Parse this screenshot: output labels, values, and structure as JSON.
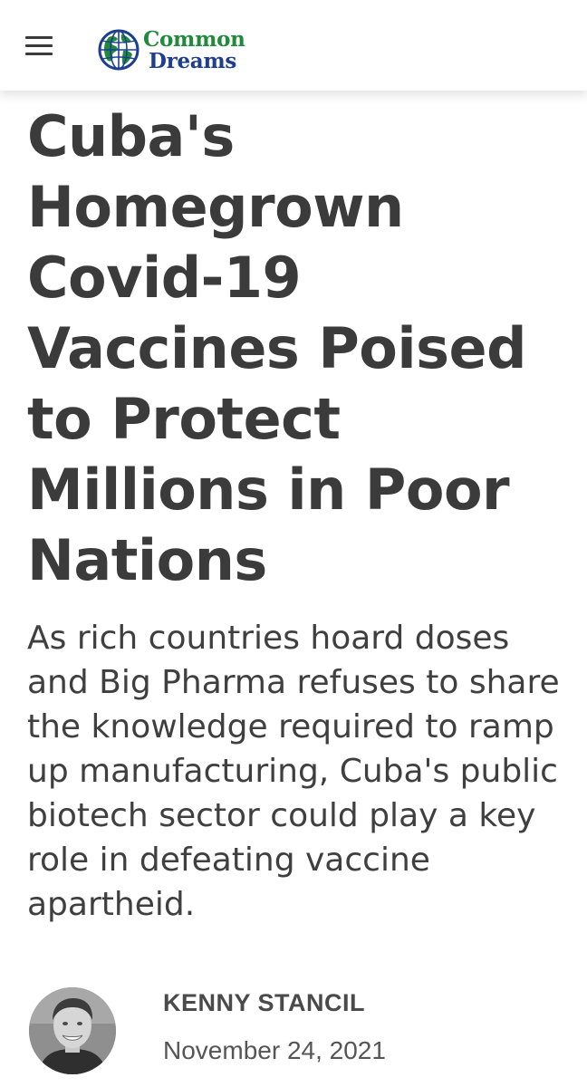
{
  "header": {
    "menu_icon": "hamburger-menu-icon",
    "logo": {
      "icon": "globe-icon",
      "line1": "Common",
      "line2": "Dreams",
      "line1_color": "#1f8a3a",
      "line2_color": "#1e3f8f"
    }
  },
  "article": {
    "headline": "Cuba's Homegrown Covid-19 Vaccines Poised to Protect Millions in Poor Nations",
    "summary": "As rich countries hoard doses and Big Pharma refuses to share the knowledge required to ramp up manufacturing, Cuba's public biotech sector could play a key role in defeating vaccine apartheid.",
    "author": {
      "name": "KENNY STANCIL",
      "avatar_icon": "author-avatar",
      "date": "November 24, 2021"
    }
  },
  "colors": {
    "text": "#3b3b3b",
    "logo_green": "#1f8a3a",
    "logo_blue": "#1e3f8f"
  }
}
